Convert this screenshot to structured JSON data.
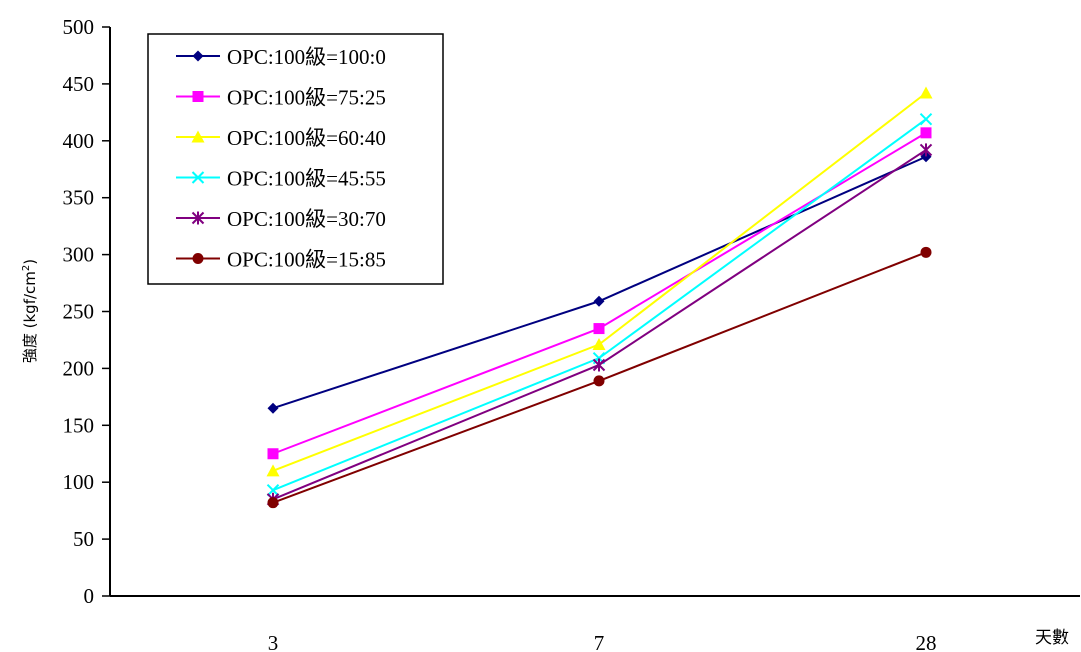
{
  "chart_data": {
    "type": "line",
    "categories": [
      "3",
      "7",
      "28"
    ],
    "ylim": [
      0,
      500
    ],
    "yticks": [
      0,
      50,
      100,
      150,
      200,
      250,
      300,
      350,
      400,
      450,
      500
    ],
    "ylabel": "強度 (kgf/cm",
    "ylabel_sup": "2",
    "ylabel_close": ")",
    "xlabel": "天數",
    "grid": false,
    "legend_position": "top-left",
    "series": [
      {
        "name": "OPC:100級=100:0",
        "color": "#000080",
        "marker": "diamond",
        "values": [
          165,
          259,
          386
        ]
      },
      {
        "name": "OPC:100級=75:25",
        "color": "#FF00FF",
        "marker": "square",
        "values": [
          125,
          235,
          407
        ]
      },
      {
        "name": "OPC:100級=60:40",
        "color": "#FFFF00",
        "marker": "triangle",
        "values": [
          110,
          221,
          442
        ]
      },
      {
        "name": "OPC:100級=45:55",
        "color": "#00FFFF",
        "marker": "x",
        "values": [
          93,
          209,
          419
        ]
      },
      {
        "name": "OPC:100級=30:70",
        "color": "#800080",
        "marker": "asterisk",
        "values": [
          85,
          203,
          392
        ]
      },
      {
        "name": "OPC:100級=15:85",
        "color": "#800000",
        "marker": "circle",
        "values": [
          82,
          189,
          302
        ]
      }
    ]
  }
}
